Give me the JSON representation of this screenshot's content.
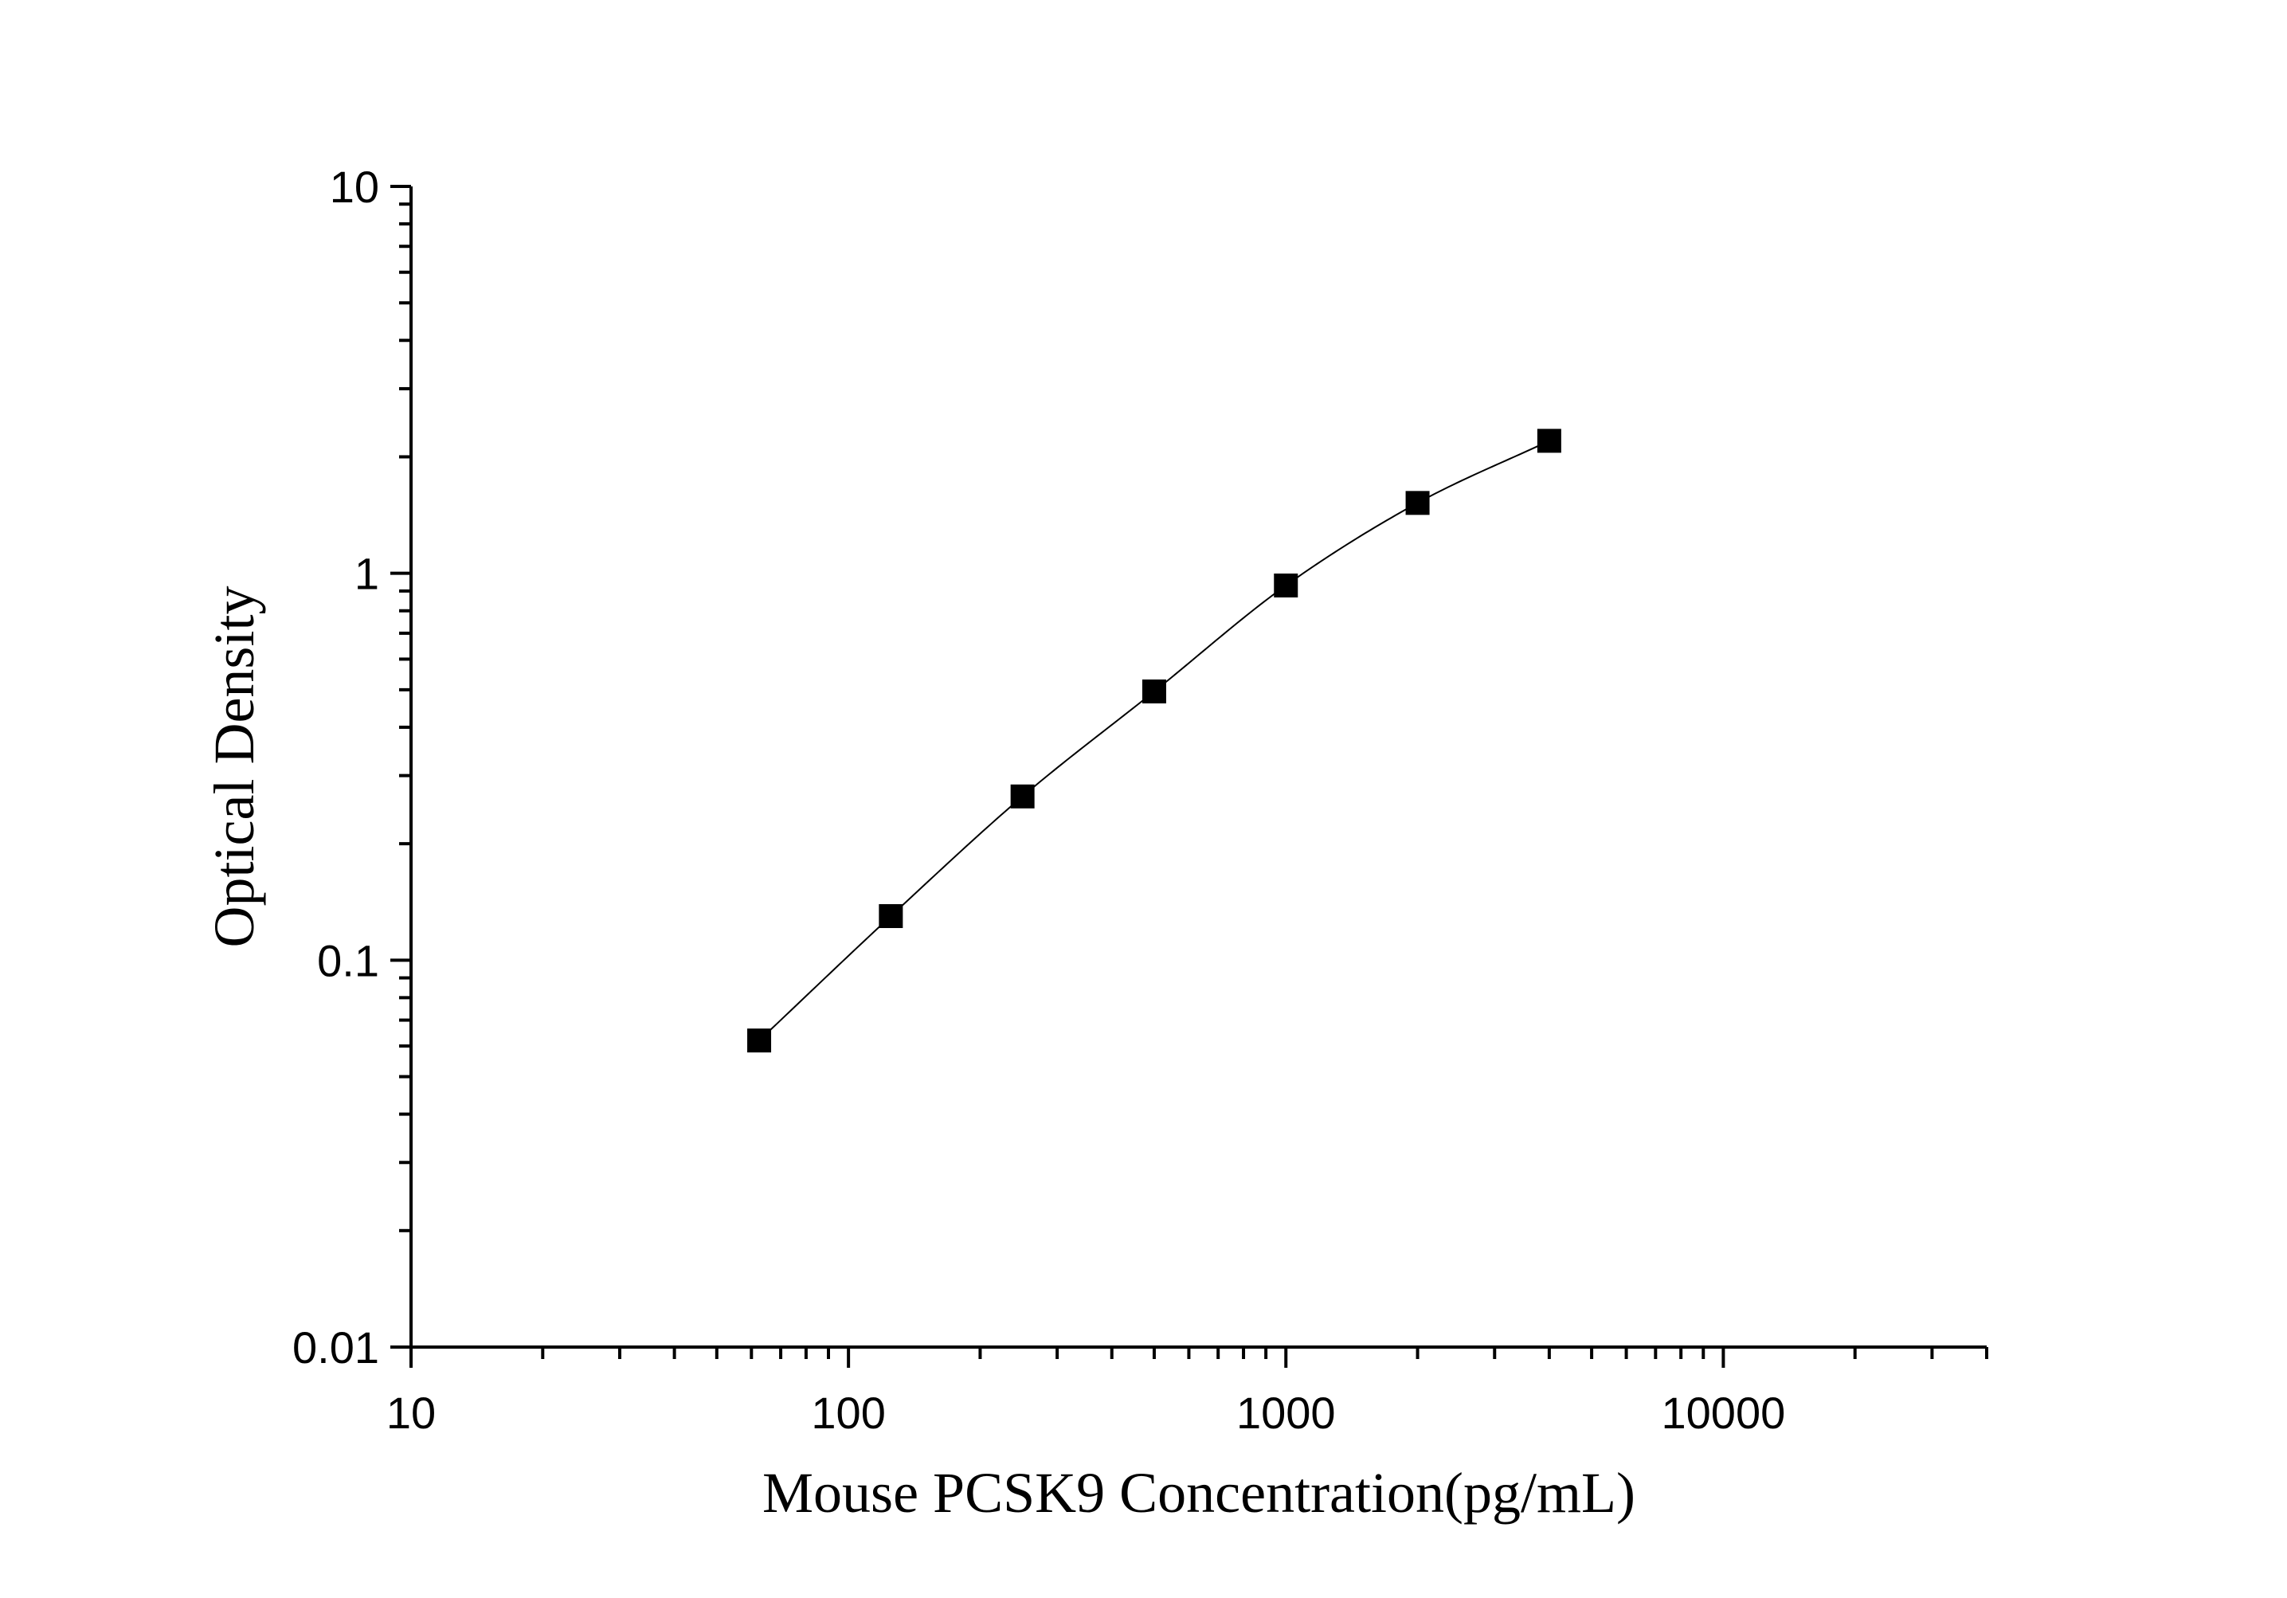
{
  "chart_data": {
    "type": "scatter",
    "title": "",
    "xlabel": "Mouse PCSK9 Concentration(pg/mL)",
    "ylabel": "Optical Density",
    "x_scale": "log",
    "y_scale": "log",
    "xlim": [
      10,
      40000
    ],
    "ylim": [
      0.01,
      10
    ],
    "x_ticks": [
      10,
      100,
      1000,
      10000
    ],
    "x_tick_labels": [
      "10",
      "100",
      "1000",
      "10000"
    ],
    "y_ticks": [
      0.01,
      0.1,
      1,
      10
    ],
    "y_tick_labels": [
      "0.01",
      "0.1",
      "1",
      "10"
    ],
    "grid": false,
    "legend": "none",
    "marker": "square",
    "fit_line": true,
    "colors": {
      "points": "#000000",
      "line": "#000000",
      "axes": "#000000"
    },
    "points": [
      {
        "x": 62.5,
        "y": 0.062
      },
      {
        "x": 125,
        "y": 0.13
      },
      {
        "x": 250,
        "y": 0.265
      },
      {
        "x": 500,
        "y": 0.495
      },
      {
        "x": 1000,
        "y": 0.93
      },
      {
        "x": 2000,
        "y": 1.52
      },
      {
        "x": 4000,
        "y": 2.2
      }
    ]
  }
}
